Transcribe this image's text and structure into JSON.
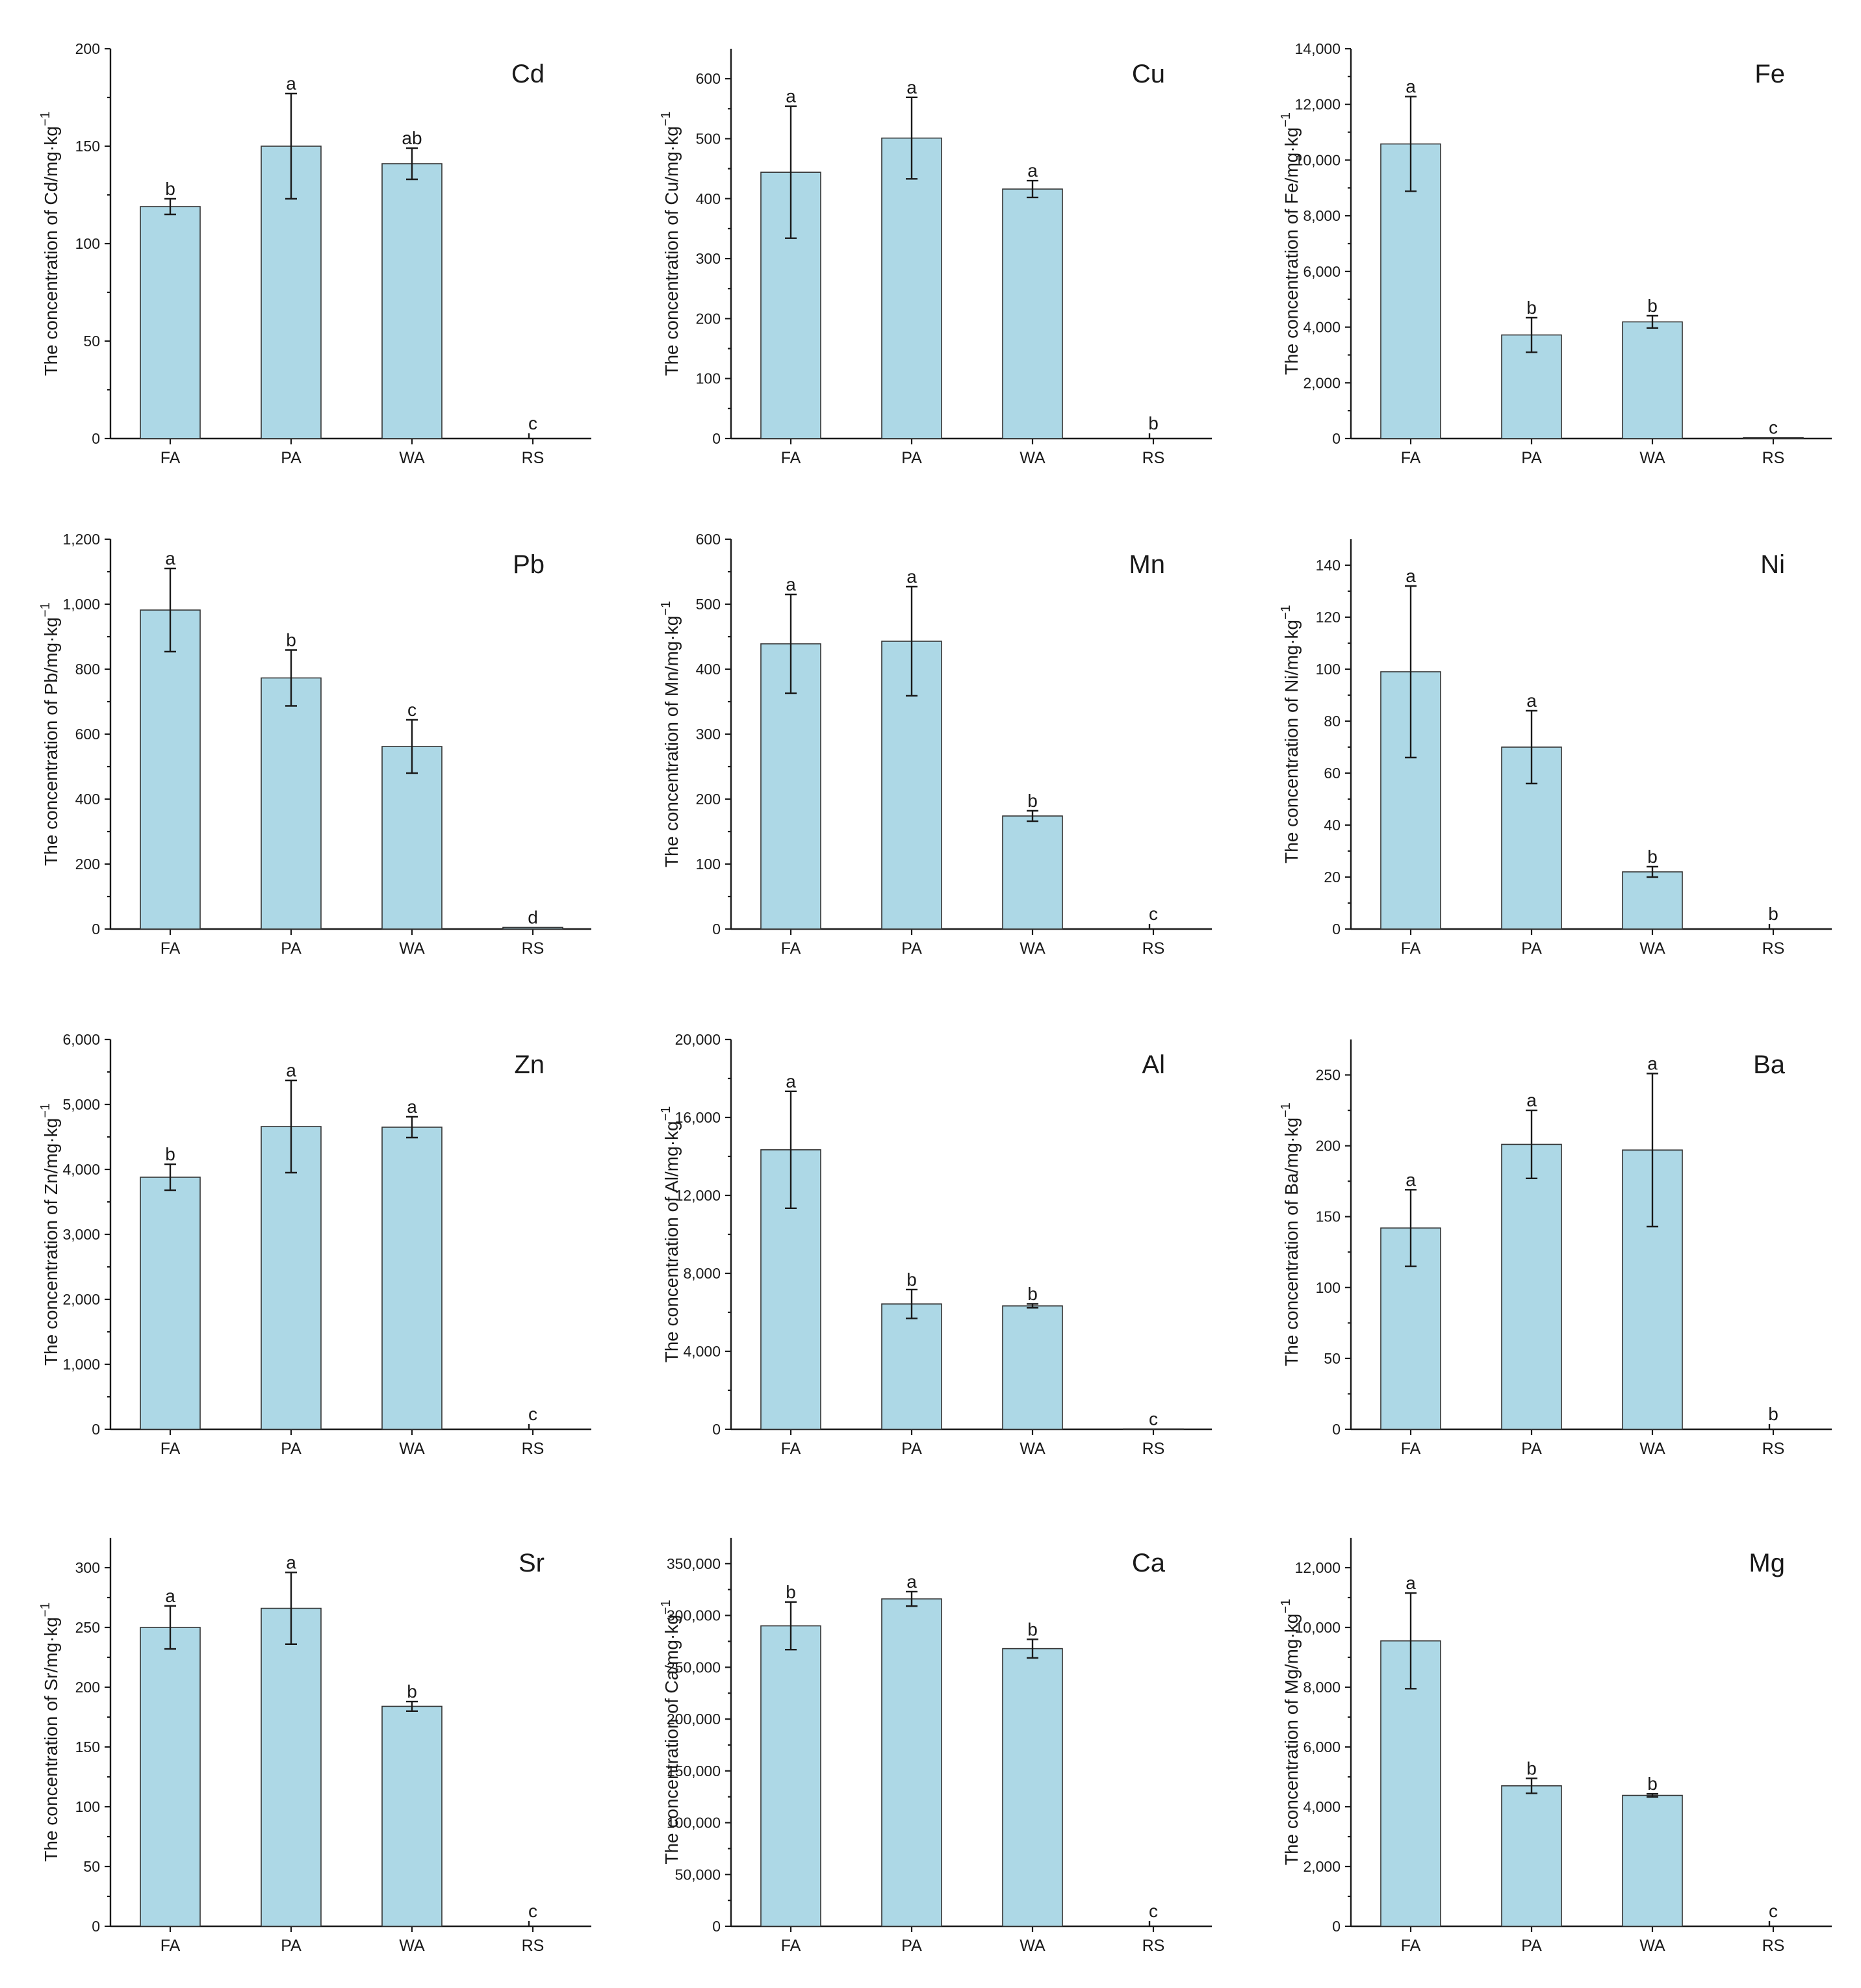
{
  "categories": [
    "FA",
    "PA",
    "WA",
    "RS"
  ],
  "colors": {
    "bar": "#add8e6",
    "bar_edge": "#333333",
    "axis": "#1a1a1a"
  },
  "chart_data": [
    {
      "type": "bar",
      "title": "Cd",
      "ylabel": "The concentration of Cd/mg·kg",
      "ylabel_sup": "−1",
      "ylim": [
        0,
        200
      ],
      "yticks": [
        "0",
        "50",
        "100",
        "150",
        "200"
      ],
      "ytick_values": [
        0,
        50,
        100,
        150,
        200
      ],
      "categories": [
        "FA",
        "PA",
        "WA",
        "RS"
      ],
      "values": [
        119,
        150,
        141,
        0
      ],
      "errors": [
        4,
        27,
        8,
        0
      ],
      "letters": [
        "b",
        "a",
        "ab",
        "c"
      ]
    },
    {
      "type": "bar",
      "title": "Cu",
      "ylabel": "The concentration of Cu/mg·kg",
      "ylabel_sup": "−1",
      "ylim": [
        0,
        650
      ],
      "yticks": [
        "0",
        "100",
        "200",
        "300",
        "400",
        "500",
        "600"
      ],
      "ytick_values": [
        0,
        100,
        200,
        300,
        400,
        500,
        600
      ],
      "categories": [
        "FA",
        "PA",
        "WA",
        "RS"
      ],
      "values": [
        444,
        501,
        416,
        0
      ],
      "errors": [
        110,
        68,
        14,
        0
      ],
      "letters": [
        "a",
        "a",
        "a",
        "b"
      ]
    },
    {
      "type": "bar",
      "title": "Fe",
      "ylabel": "The concentration of Fe/mg·kg",
      "ylabel_sup": "−1",
      "ylim": [
        0,
        14000
      ],
      "yticks": [
        "0",
        "2,000",
        "4,000",
        "6,000",
        "8,000",
        "10,000",
        "12,000",
        "14,000"
      ],
      "ytick_values": [
        0,
        2000,
        4000,
        6000,
        8000,
        10000,
        12000,
        14000
      ],
      "categories": [
        "FA",
        "PA",
        "WA",
        "RS"
      ],
      "values": [
        10580,
        3720,
        4190,
        30
      ],
      "errors": [
        1700,
        620,
        220,
        0
      ],
      "letters": [
        "a",
        "b",
        "b",
        "c"
      ]
    },
    {
      "type": "bar",
      "title": "Pb",
      "ylabel": "The concentration of Pb/mg·kg",
      "ylabel_sup": "−1",
      "ylim": [
        0,
        1200
      ],
      "yticks": [
        "0",
        "200",
        "400",
        "600",
        "800",
        "1,000",
        "1,200"
      ],
      "ytick_values": [
        0,
        200,
        400,
        600,
        800,
        1000,
        1200
      ],
      "categories": [
        "FA",
        "PA",
        "WA",
        "RS"
      ],
      "values": [
        982,
        773,
        562,
        5
      ],
      "errors": [
        128,
        86,
        82,
        0
      ],
      "letters": [
        "a",
        "b",
        "c",
        "d"
      ]
    },
    {
      "type": "bar",
      "title": "Mn",
      "ylabel": "The concentration of Mn/mg·kg",
      "ylabel_sup": "−1",
      "ylim": [
        0,
        600
      ],
      "yticks": [
        "0",
        "100",
        "200",
        "300",
        "400",
        "500",
        "600"
      ],
      "ytick_values": [
        0,
        100,
        200,
        300,
        400,
        500,
        600
      ],
      "categories": [
        "FA",
        "PA",
        "WA",
        "RS"
      ],
      "values": [
        439,
        443,
        174,
        0
      ],
      "errors": [
        76,
        84,
        8,
        0
      ],
      "letters": [
        "a",
        "a",
        "b",
        "c"
      ]
    },
    {
      "type": "bar",
      "title": "Ni",
      "ylabel": "The concentration of Ni/mg·kg",
      "ylabel_sup": "−1",
      "ylim": [
        0,
        150
      ],
      "yticks": [
        "0",
        "20",
        "40",
        "60",
        "80",
        "100",
        "120",
        "140"
      ],
      "ytick_values": [
        0,
        20,
        40,
        60,
        80,
        100,
        120,
        140
      ],
      "categories": [
        "FA",
        "PA",
        "WA",
        "RS"
      ],
      "values": [
        99,
        70,
        22,
        0
      ],
      "errors": [
        33,
        14,
        2,
        0
      ],
      "letters": [
        "a",
        "a",
        "b",
        "b"
      ]
    },
    {
      "type": "bar",
      "title": "Zn",
      "ylabel": "The concentration of Zn/mg·kg",
      "ylabel_sup": "−1",
      "ylim": [
        0,
        6000
      ],
      "yticks": [
        "0",
        "1,000",
        "2,000",
        "3,000",
        "4,000",
        "5,000",
        "6,000"
      ],
      "ytick_values": [
        0,
        1000,
        2000,
        3000,
        4000,
        5000,
        6000
      ],
      "categories": [
        "FA",
        "PA",
        "WA",
        "RS"
      ],
      "values": [
        3880,
        4660,
        4650,
        0
      ],
      "errors": [
        200,
        710,
        160,
        0
      ],
      "letters": [
        "b",
        "a",
        "a",
        "c"
      ]
    },
    {
      "type": "bar",
      "title": "Al",
      "ylabel": "The concentration of Al/mg·kg",
      "ylabel_sup": "−1",
      "ylim": [
        0,
        20000
      ],
      "yticks": [
        "0",
        "4,000",
        "8,000",
        "12,000",
        "16,000",
        "20,000"
      ],
      "ytick_values": [
        0,
        4000,
        8000,
        12000,
        16000,
        20000
      ],
      "categories": [
        "FA",
        "PA",
        "WA",
        "RS"
      ],
      "values": [
        14340,
        6430,
        6330,
        20
      ],
      "errors": [
        3000,
        740,
        100,
        0
      ],
      "letters": [
        "a",
        "b",
        "b",
        "c"
      ]
    },
    {
      "type": "bar",
      "title": "Ba",
      "ylabel": "The concentration of Ba/mg·kg",
      "ylabel_sup": "−1",
      "ylim": [
        0,
        275
      ],
      "yticks": [
        "0",
        "50",
        "100",
        "150",
        "200",
        "250"
      ],
      "ytick_values": [
        0,
        50,
        100,
        150,
        200,
        250
      ],
      "categories": [
        "FA",
        "PA",
        "WA",
        "RS"
      ],
      "values": [
        142,
        201,
        197,
        0
      ],
      "errors": [
        27,
        24,
        54,
        0
      ],
      "letters": [
        "a",
        "a",
        "a",
        "b"
      ]
    },
    {
      "type": "bar",
      "title": "Sr",
      "ylabel": "The concentration of Sr/mg·kg",
      "ylabel_sup": "−1",
      "ylim": [
        0,
        325
      ],
      "yticks": [
        "0",
        "50",
        "100",
        "150",
        "200",
        "250",
        "300"
      ],
      "ytick_values": [
        0,
        50,
        100,
        150,
        200,
        250,
        300
      ],
      "categories": [
        "FA",
        "PA",
        "WA",
        "RS"
      ],
      "values": [
        250,
        266,
        184,
        0
      ],
      "errors": [
        18,
        30,
        4,
        0
      ],
      "letters": [
        "a",
        "a",
        "b",
        "c"
      ]
    },
    {
      "type": "bar",
      "title": "Ca",
      "ylabel": "The concentration of Ca/mg·kg",
      "ylabel_sup": "−1",
      "ylim": [
        0,
        375000
      ],
      "yticks": [
        "0",
        "50,000",
        "100,000",
        "150,000",
        "200,000",
        "250,000",
        "300,000",
        "350,000"
      ],
      "ytick_values": [
        0,
        50000,
        100000,
        150000,
        200000,
        250000,
        300000,
        350000
      ],
      "categories": [
        "FA",
        "PA",
        "WA",
        "RS"
      ],
      "values": [
        290000,
        316000,
        268000,
        0
      ],
      "errors": [
        23000,
        7000,
        9000,
        0
      ],
      "letters": [
        "b",
        "a",
        "b",
        "c"
      ]
    },
    {
      "type": "bar",
      "title": "Mg",
      "ylabel": "The concentration of Mg/mg·kg",
      "ylabel_sup": "−1",
      "ylim": [
        0,
        13000
      ],
      "yticks": [
        "0",
        "2,000",
        "4,000",
        "6,000",
        "8,000",
        "10,000",
        "12,000"
      ],
      "ytick_values": [
        0,
        2000,
        4000,
        6000,
        8000,
        10000,
        12000
      ],
      "categories": [
        "FA",
        "PA",
        "WA",
        "RS"
      ],
      "values": [
        9550,
        4700,
        4380,
        0
      ],
      "errors": [
        1600,
        250,
        50,
        0
      ],
      "letters": [
        "a",
        "b",
        "b",
        "c"
      ]
    }
  ]
}
